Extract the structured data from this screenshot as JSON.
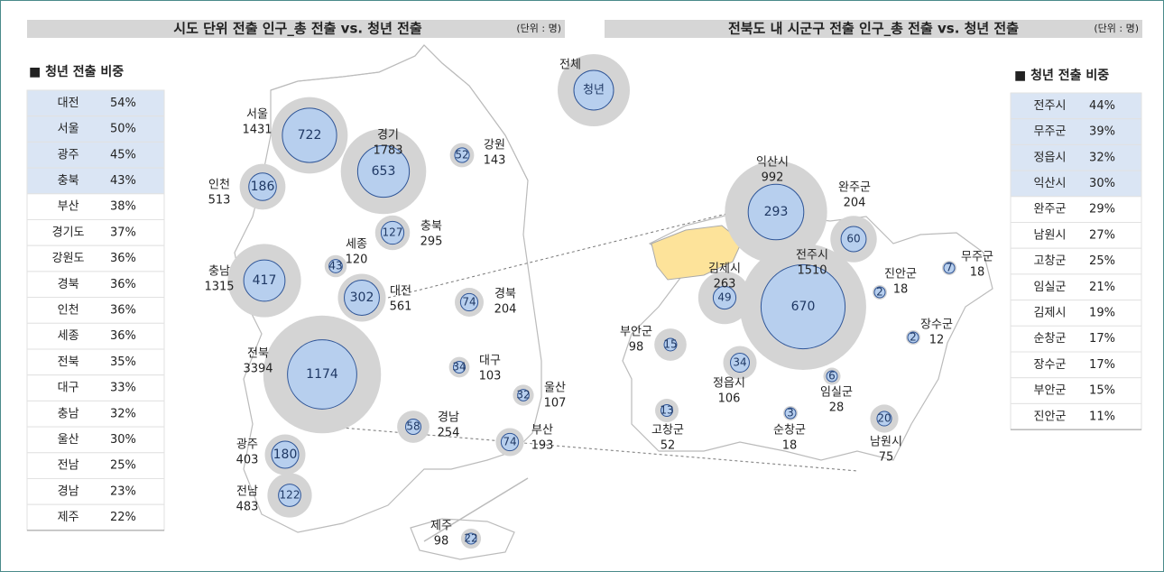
{
  "left": {
    "title": "시도 단위 전출 인구_총 전출 vs. 청년 전출",
    "unit": "(단위 : 명)",
    "legend_title": "■ 청년 전출 비중",
    "overall": {
      "name": "전체",
      "inner": "청년"
    },
    "table": [
      [
        "대전",
        "54%"
      ],
      [
        "서울",
        "50%"
      ],
      [
        "광주",
        "45%"
      ],
      [
        "충북",
        "43%"
      ],
      [
        "부산",
        "38%"
      ],
      [
        "경기도",
        "37%"
      ],
      [
        "강원도",
        "36%"
      ],
      [
        "경북",
        "36%"
      ],
      [
        "인천",
        "36%"
      ],
      [
        "세종",
        "36%"
      ],
      [
        "전북",
        "35%"
      ],
      [
        "대구",
        "33%"
      ],
      [
        "충남",
        "32%"
      ],
      [
        "울산",
        "30%"
      ],
      [
        "전남",
        "25%"
      ],
      [
        "경남",
        "23%"
      ],
      [
        "제주",
        "22%"
      ]
    ],
    "regions": [
      {
        "name": "서울",
        "total": 1431,
        "youth": 722
      },
      {
        "name": "경기",
        "total": 1783,
        "youth": 653
      },
      {
        "name": "강원",
        "total": 143,
        "youth": 52
      },
      {
        "name": "인천",
        "total": 513,
        "youth": 186
      },
      {
        "name": "충북",
        "total": 295,
        "youth": 127
      },
      {
        "name": "세종",
        "total": 120,
        "youth": 43
      },
      {
        "name": "충남",
        "total": 1315,
        "youth": 417
      },
      {
        "name": "대전",
        "total": 561,
        "youth": 302
      },
      {
        "name": "경북",
        "total": 204,
        "youth": 74
      },
      {
        "name": "전북",
        "total": 3394,
        "youth": 1174
      },
      {
        "name": "대구",
        "total": 103,
        "youth": 34
      },
      {
        "name": "울산",
        "total": 107,
        "youth": 32
      },
      {
        "name": "경남",
        "total": 254,
        "youth": 58
      },
      {
        "name": "부산",
        "total": 193,
        "youth": 74
      },
      {
        "name": "광주",
        "total": 403,
        "youth": 180
      },
      {
        "name": "전남",
        "total": 483,
        "youth": 122
      },
      {
        "name": "제주",
        "total": 98,
        "youth": 22
      }
    ]
  },
  "right": {
    "title": "전북도 내 시군구 전출 인구_총 전출 vs. 청년 전출",
    "unit": "(단위 : 명)",
    "legend_title": "■ 청년 전출 비중",
    "table": [
      [
        "전주시",
        "44%"
      ],
      [
        "무주군",
        "39%"
      ],
      [
        "정읍시",
        "32%"
      ],
      [
        "익산시",
        "30%"
      ],
      [
        "완주군",
        "29%"
      ],
      [
        "남원시",
        "27%"
      ],
      [
        "고창군",
        "25%"
      ],
      [
        "임실군",
        "21%"
      ],
      [
        "김제시",
        "19%"
      ],
      [
        "순창군",
        "17%"
      ],
      [
        "장수군",
        "17%"
      ],
      [
        "부안군",
        "15%"
      ],
      [
        "진안군",
        "11%"
      ]
    ],
    "regions": [
      {
        "name": "익산시",
        "total": 992,
        "youth": 293
      },
      {
        "name": "완주군",
        "total": 204,
        "youth": 60
      },
      {
        "name": "무주군",
        "total": 18,
        "youth": 7
      },
      {
        "name": "김제시",
        "total": 263,
        "youth": 49
      },
      {
        "name": "전주시",
        "total": 1510,
        "youth": 670
      },
      {
        "name": "진안군",
        "total": 18,
        "youth": 2
      },
      {
        "name": "장수군",
        "total": 12,
        "youth": 2
      },
      {
        "name": "부안군",
        "total": 98,
        "youth": 15
      },
      {
        "name": "정읍시",
        "total": 106,
        "youth": 34
      },
      {
        "name": "임실군",
        "total": 28,
        "youth": 6
      },
      {
        "name": "고창군",
        "total": 52,
        "youth": 13
      },
      {
        "name": "순창군",
        "total": 18,
        "youth": 3
      },
      {
        "name": "남원시",
        "total": 75,
        "youth": 20
      }
    ]
  }
}
